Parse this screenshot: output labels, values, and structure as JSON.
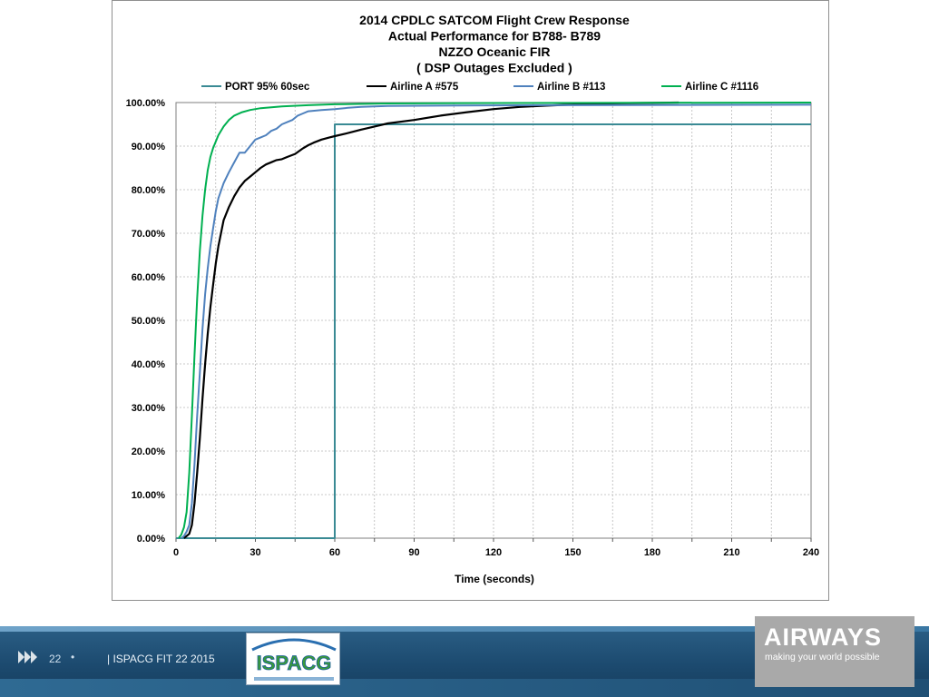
{
  "chart_data": {
    "type": "line",
    "title": [
      "2014 CPDLC  SATCOM   Flight Crew Response",
      "Actual Performance  for B788- B789",
      "NZZO Oceanic FIR",
      "( DSP Outages Excluded )"
    ],
    "xlabel": "Time (seconds)",
    "ylabel": "",
    "xlim": [
      0,
      240
    ],
    "ylim": [
      0,
      100
    ],
    "x_ticks": [
      "0",
      "30",
      "60",
      "90",
      "120",
      "150",
      "180",
      "210",
      "240"
    ],
    "y_ticks": [
      "0.00%",
      "10.00%",
      "20.00%",
      "30.00%",
      "40.00%",
      "50.00%",
      "60.00%",
      "70.00%",
      "80.00%",
      "90.00%",
      "100.00%"
    ],
    "x_tick_values": [
      0,
      30,
      60,
      90,
      120,
      150,
      180,
      210,
      240
    ],
    "y_tick_values": [
      0,
      10,
      20,
      30,
      40,
      50,
      60,
      70,
      80,
      90,
      100
    ],
    "x_minor_gridlines": [
      15,
      45,
      75,
      105,
      135,
      165,
      195,
      225
    ],
    "grid": true,
    "legend_position": "top",
    "series": [
      {
        "name": "PORT 95% 60sec",
        "color": "#3a8a94",
        "x": [
          0,
          59.5,
          59.5,
          60,
          60,
          240
        ],
        "y": [
          0,
          0,
          0,
          0,
          95,
          95
        ]
      },
      {
        "name": "Airline A #575",
        "color": "#000000",
        "x": [
          3,
          4,
          5,
          6,
          7,
          8,
          9,
          10,
          11,
          12,
          13,
          14,
          15,
          16,
          17,
          18,
          20,
          22,
          24,
          26,
          28,
          30,
          32,
          34,
          36,
          38,
          40,
          42,
          45,
          48,
          50,
          52,
          55,
          58,
          60,
          65,
          70,
          75,
          80,
          90,
          100,
          110,
          120,
          130,
          140,
          160,
          190
        ],
        "y": [
          0,
          0.5,
          1,
          3,
          8,
          15,
          23,
          32,
          40,
          47,
          53,
          58,
          63,
          67,
          70,
          73,
          76,
          78.5,
          80.5,
          82,
          83,
          84,
          85,
          85.8,
          86.3,
          86.8,
          87,
          87.5,
          88.2,
          89.5,
          90.2,
          90.8,
          91.5,
          92,
          92.3,
          93,
          93.8,
          94.5,
          95.2,
          96,
          97,
          97.8,
          98.5,
          99,
          99.3,
          99.8,
          100
        ]
      },
      {
        "name": "Airline B #113",
        "color": "#4f81bd",
        "x": [
          2,
          3,
          4,
          5,
          6,
          7,
          8,
          9,
          10,
          11,
          12,
          13,
          14,
          15,
          16,
          18,
          20,
          24,
          26,
          28,
          30,
          32,
          34,
          36,
          38,
          40,
          42,
          44,
          46,
          48,
          50,
          55,
          60,
          65,
          70,
          80,
          100,
          140,
          240
        ],
        "y": [
          0,
          0.5,
          1.5,
          3,
          8,
          17,
          28,
          38,
          48,
          56,
          62,
          67,
          71,
          75,
          78,
          81.5,
          84,
          88.5,
          88.5,
          90,
          91.5,
          92,
          92.5,
          93.5,
          94,
          95,
          95.5,
          96,
          97,
          97.5,
          98,
          98.3,
          98.5,
          98.8,
          99,
          99.2,
          99.3,
          99.4,
          99.5
        ]
      },
      {
        "name": "Airline C #1116",
        "color": "#00b050",
        "x": [
          1,
          2,
          3,
          4,
          5,
          6,
          7,
          8,
          9,
          10,
          11,
          12,
          13,
          14,
          16,
          18,
          20,
          22,
          25,
          28,
          32,
          40,
          50,
          60,
          80,
          120,
          240
        ],
        "y": [
          0,
          0.8,
          2.5,
          6,
          15,
          28,
          42,
          55,
          66,
          74,
          80,
          84.5,
          87.5,
          89.5,
          92.5,
          94.5,
          96,
          97,
          97.8,
          98.3,
          98.7,
          99.1,
          99.4,
          99.6,
          99.8,
          99.9,
          100
        ]
      }
    ]
  },
  "footer": {
    "slide_number": "22",
    "bullet": "•",
    "text": "| ISPACG FIT 22 2015",
    "ispacg_logo_text": "ISPACG",
    "brand_name": "AIRWAYS",
    "brand_tagline": "making your world possible",
    "arrow_icon": "double-chevron-right-icon"
  }
}
